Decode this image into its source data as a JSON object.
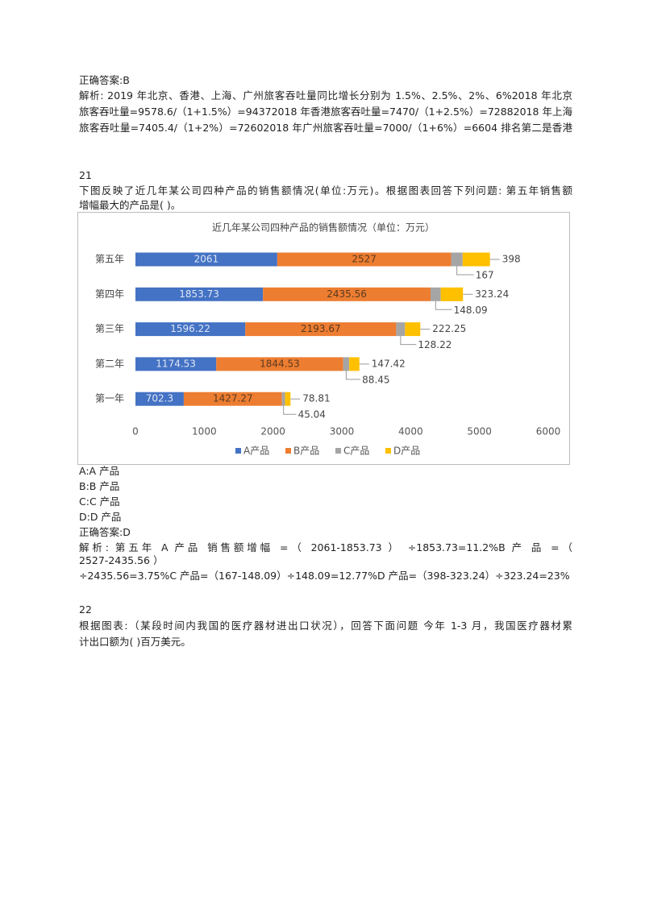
{
  "document": {
    "prev_answer": "正确答案:B",
    "prev_analysis": [
      "解析: 2019 年北京、香港、上海、广州旅客吞吐量同比增长分别为 1.5%、2.5%、2%、6%2018 年北京",
      "旅客吞吐量=9578.6/（1+1.5%）=94372018 年香港旅客吞吐量=7470/（1+2.5%）=72882018 年上海",
      "旅客吞吐量=7405.4/（1+2%）=72602018 年广州旅客吞吐量=7000/（1+6%）=6604 排名第二是香港"
    ],
    "q21": {
      "number": "21",
      "question": [
        "下图反映了近几年某公司四种产品的销售额情况(单位:万元)。根据图表回答下列问题: 第五年销售额",
        "增幅最大的产品是( )。"
      ],
      "options": [
        "A:A 产品",
        "B:B 产品",
        "C:C 产品",
        "D:D 产品"
      ],
      "answer": "正确答案:D",
      "analysis": [
        "解析: 第五年 A 产品 销售额增幅 =（ 2061-1853.73 ） ÷1853.73=11.2%B 产 品 =（",
        "2527-2435.56 ）",
        "÷2435.56=3.75%C 产品=（167-148.09）÷148.09=12.77%D 产品=（398-323.24）÷323.24=23%"
      ]
    },
    "q22": {
      "number": "22",
      "question": [
        "根据图表:（某段时间内我国的医疗器材进出口状况），回答下面问题 今年 1-3 月，我国医疗器材累",
        "计出口额为( )百万美元。"
      ]
    }
  },
  "chart_data": {
    "type": "stacked-bar-horizontal",
    "title": "近几年某公司四种产品的销售额情况（单位：万元）",
    "categories": [
      "第五年",
      "第四年",
      "第三年",
      "第二年",
      "第一年"
    ],
    "series": [
      {
        "name": "A产品",
        "color": "#4472c4",
        "values": [
          2061,
          1853.73,
          1596.22,
          1174.53,
          702.3
        ]
      },
      {
        "name": "B产品",
        "color": "#ed7d31",
        "values": [
          2527,
          2435.56,
          2193.67,
          1844.53,
          1427.27
        ]
      },
      {
        "name": "C产品",
        "color": "#a5a5a5",
        "values": [
          167,
          148.09,
          128.22,
          88.45,
          45.04
        ]
      },
      {
        "name": "D产品",
        "color": "#ffc000",
        "values": [
          398,
          323.24,
          222.25,
          147.42,
          78.81
        ]
      }
    ],
    "xlim": [
      0,
      6000
    ],
    "xticks": [
      0,
      1000,
      2000,
      3000,
      4000,
      5000,
      6000
    ],
    "grid": false,
    "legend": "bottom"
  }
}
